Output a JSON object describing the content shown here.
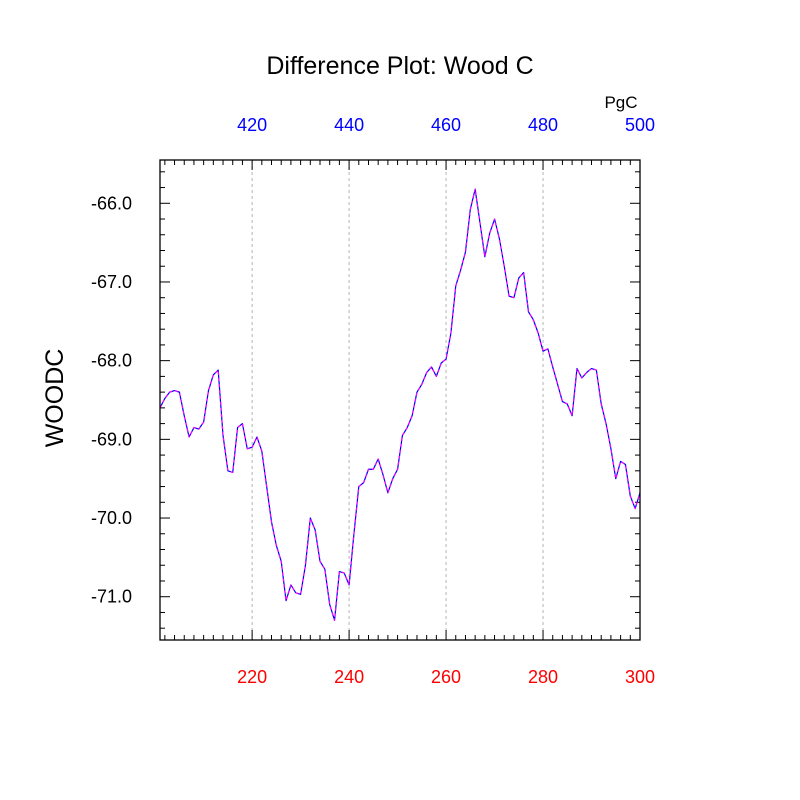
{
  "chart_data": {
    "type": "line",
    "title": "Difference Plot: Wood C",
    "ylabel": "WOODC",
    "top_units": "PgC",
    "colors": {
      "bottom_axis": "#ff0000",
      "top_axis": "#0000ff",
      "line_primary": "#0000ff",
      "line_dash": "#ff00ff",
      "grid": "#b4b4b4",
      "frame": "#000000"
    },
    "xlim": [
      201,
      300
    ],
    "ylim": [
      -71.55,
      -65.45
    ],
    "bottom_ticks": [
      {
        "value": 220,
        "label": "220"
      },
      {
        "value": 240,
        "label": "240"
      },
      {
        "value": 260,
        "label": "260"
      },
      {
        "value": 280,
        "label": "280"
      },
      {
        "value": 300,
        "label": "300"
      }
    ],
    "top_ticks": [
      {
        "value": 220,
        "label": "420"
      },
      {
        "value": 240,
        "label": "440"
      },
      {
        "value": 260,
        "label": "460"
      },
      {
        "value": 280,
        "label": "480"
      },
      {
        "value": 300,
        "label": "500"
      }
    ],
    "y_ticks": [
      {
        "value": -66.0,
        "label": "-66.0"
      },
      {
        "value": -67.0,
        "label": "-67.0"
      },
      {
        "value": -68.0,
        "label": "-68.0"
      },
      {
        "value": -69.0,
        "label": "-69.0"
      },
      {
        "value": -70.0,
        "label": "-70.0"
      },
      {
        "value": -71.0,
        "label": "-71.0"
      }
    ],
    "grid": true,
    "x": [
      201,
      202,
      203,
      204,
      205,
      206,
      207,
      208,
      209,
      210,
      211,
      212,
      213,
      214,
      215,
      216,
      217,
      218,
      219,
      220,
      221,
      222,
      223,
      224,
      225,
      226,
      227,
      228,
      229,
      230,
      231,
      232,
      233,
      234,
      235,
      236,
      237,
      238,
      239,
      240,
      241,
      242,
      243,
      244,
      245,
      246,
      247,
      248,
      249,
      250,
      251,
      252,
      253,
      254,
      255,
      256,
      257,
      258,
      259,
      260,
      261,
      262,
      263,
      264,
      265,
      266,
      267,
      268,
      269,
      270,
      271,
      272,
      273,
      274,
      275,
      276,
      277,
      278,
      279,
      280,
      281,
      282,
      283,
      284,
      285,
      286,
      287,
      288,
      289,
      290,
      291,
      292,
      293,
      294,
      295,
      296,
      297,
      298,
      299,
      300
    ],
    "values": [
      -68.6,
      -68.48,
      -68.4,
      -68.38,
      -68.4,
      -68.7,
      -68.97,
      -68.85,
      -68.87,
      -68.78,
      -68.38,
      -68.18,
      -68.12,
      -68.95,
      -69.4,
      -69.42,
      -68.85,
      -68.8,
      -69.12,
      -69.1,
      -68.97,
      -69.15,
      -69.6,
      -70.05,
      -70.35,
      -70.55,
      -71.05,
      -70.85,
      -70.95,
      -70.97,
      -70.6,
      -70.0,
      -70.15,
      -70.55,
      -70.65,
      -71.1,
      -71.3,
      -70.68,
      -70.7,
      -70.85,
      -70.2,
      -69.6,
      -69.55,
      -69.38,
      -69.38,
      -69.25,
      -69.45,
      -69.68,
      -69.5,
      -69.38,
      -68.95,
      -68.85,
      -68.7,
      -68.4,
      -68.3,
      -68.15,
      -68.08,
      -68.2,
      -68.03,
      -67.98,
      -67.65,
      -67.05,
      -66.85,
      -66.62,
      -66.08,
      -65.82,
      -66.25,
      -66.68,
      -66.38,
      -66.2,
      -66.45,
      -66.8,
      -67.18,
      -67.2,
      -66.95,
      -66.88,
      -67.38,
      -67.48,
      -67.65,
      -67.88,
      -67.85,
      -68.08,
      -68.3,
      -68.52,
      -68.55,
      -68.7,
      -68.1,
      -68.22,
      -68.15,
      -68.1,
      -68.12,
      -68.55,
      -68.8,
      -69.12,
      -69.5,
      -69.28,
      -69.32,
      -69.72,
      -69.88,
      -69.68
    ]
  }
}
